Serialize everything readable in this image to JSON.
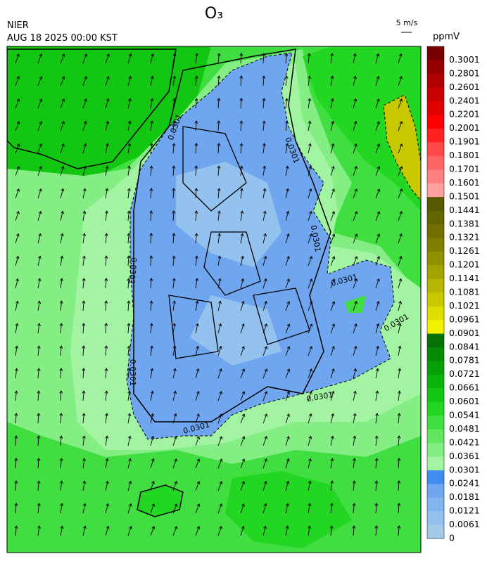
{
  "header": {
    "title": "O₃",
    "agency": "NIER",
    "datetime": "AUG 18 2025 00:00 KST",
    "wind_reference": "5 m/s"
  },
  "colorbar": {
    "label": "ppmV",
    "levels": [
      0,
      0.0061,
      0.0121,
      0.0181,
      0.0241,
      0.0301,
      0.0361,
      0.0421,
      0.0481,
      0.0541,
      0.0601,
      0.0661,
      0.0721,
      0.0781,
      0.0841,
      0.0901,
      0.0961,
      0.1021,
      0.1081,
      0.1141,
      0.1201,
      0.1261,
      0.1321,
      0.1381,
      0.1441,
      0.1501,
      0.1601,
      0.1701,
      0.1801,
      0.1901,
      0.2001,
      0.2201,
      0.2401,
      0.2601,
      0.2801,
      0.3001
    ],
    "colors": [
      "#a3cbe9",
      "#94c2ee",
      "#82b5ef",
      "#6fa6ef",
      "#3f8ef0",
      "#a2f4a2",
      "#84ee84",
      "#62e662",
      "#40de40",
      "#22d622",
      "#12c612",
      "#0cb30c",
      "#089f08",
      "#068a06",
      "#047204",
      "#f0f000",
      "#dcdc00",
      "#c8c800",
      "#b6b600",
      "#a4a400",
      "#929200",
      "#808000",
      "#707000",
      "#646400",
      "#585800",
      "#ffa0a0",
      "#ff8080",
      "#ff6464",
      "#ff4848",
      "#ff2020",
      "#ff0000",
      "#e00000",
      "#c80000",
      "#b00000",
      "#960000",
      "#780000"
    ]
  },
  "contour_labels": [
    "0.0301",
    "0.0301",
    "0.0301",
    "0.0301",
    "0.0301",
    "0.0301",
    "0.0301",
    "0.0301",
    "0.0301"
  ]
}
